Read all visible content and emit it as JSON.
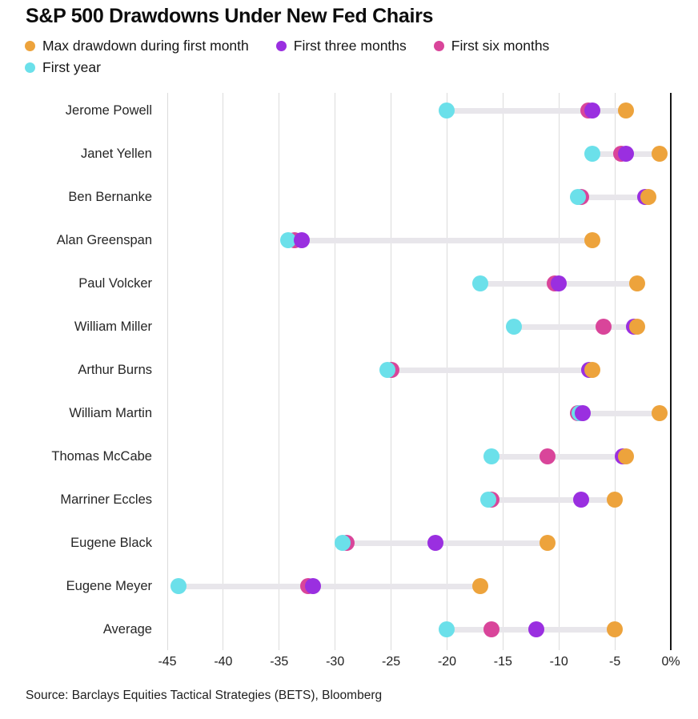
{
  "title": "S&P 500 Drawdowns Under New Fed Chairs",
  "source": "Source: Barclays Equities Tactical Strategies (BETS), Bloomberg",
  "colors": {
    "orange": "#EDA33C",
    "purple": "#9A2FE0",
    "pink": "#D9459A",
    "cyan": "#6BE0EA",
    "connector": "#E8E6EB",
    "gridline": "#DCDCDC",
    "zero_axis": "#161616"
  },
  "chart_data": {
    "type": "scatter",
    "subtype": "dot-plot",
    "title": "S&P 500 Drawdowns Under New Fed Chairs",
    "xlabel": "",
    "ylabel": "",
    "xlim": [
      -45,
      0
    ],
    "grid": true,
    "legend_position": "top",
    "x_ticks": [
      "-45",
      "-40",
      "-35",
      "-30",
      "-25",
      "-20",
      "-15",
      "-10",
      "-5",
      "0%"
    ],
    "x_tick_values": [
      -45,
      -40,
      -35,
      -30,
      -25,
      -20,
      -15,
      -10,
      -5,
      0
    ],
    "categories": [
      "Jerome Powell",
      "Janet Yellen",
      "Ben Bernanke",
      "Alan Greenspan",
      "Paul Volcker",
      "William Miller",
      "Arthur Burns",
      "William Martin",
      "Thomas McCabe",
      "Marriner Eccles",
      "Eugene Black",
      "Eugene Meyer",
      "Average"
    ],
    "series": [
      {
        "name": "Max drawdown during first month",
        "color": "#EDA33C",
        "z": 5,
        "values": [
          -4,
          -1,
          -2,
          -7,
          -3,
          -3,
          -7,
          -1,
          -4,
          -5,
          -11,
          -17,
          -5
        ]
      },
      {
        "name": "First three months",
        "color": "#9A2FE0",
        "z": 4,
        "values": [
          -7,
          -4,
          -2.3,
          -33,
          -10,
          -3.3,
          -7.3,
          -7.9,
          -4.3,
          -8,
          -21,
          -32,
          -12
        ]
      },
      {
        "name": "First six months",
        "color": "#D9459A",
        "z": 2,
        "values": [
          -7.4,
          -4.4,
          -8,
          -33.6,
          -10.4,
          -6,
          -25,
          -8.3,
          -11,
          -16,
          -29,
          -32.4,
          -16
        ]
      },
      {
        "name": "First year",
        "color": "#6BE0EA",
        "z": 3,
        "values": [
          -20,
          -7,
          -8.3,
          -34.2,
          -17,
          -14,
          -25.3,
          -8.15,
          -16,
          -16.3,
          -29.3,
          -44,
          -20
        ]
      }
    ]
  }
}
